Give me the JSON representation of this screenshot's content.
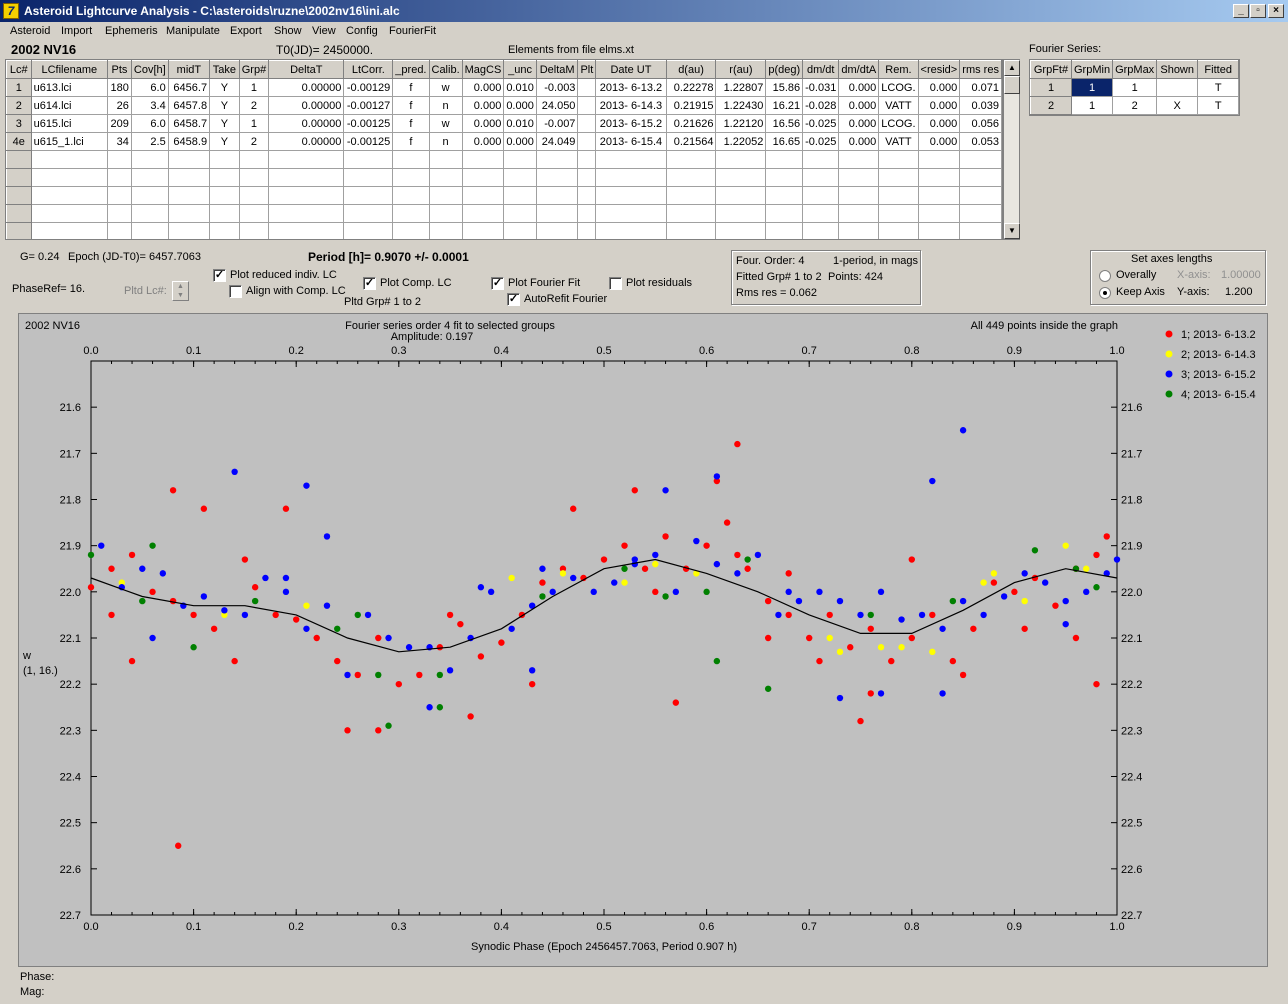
{
  "window": {
    "title": "Asteroid Lightcurve Analysis - C:\\asteroids\\ruzne\\2002nv16\\ini.alc",
    "icon_glyph": "7",
    "controls": [
      "_",
      "▫",
      "×"
    ]
  },
  "menu": [
    "Asteroid",
    "Import",
    "Ephemeris",
    "Manipulate",
    "Export",
    "Show",
    "View",
    "Config",
    "FourierFit"
  ],
  "header": {
    "asteroid": "2002 NV16",
    "t0": "T0(JD)= 2450000.",
    "elements": "Elements from file elms.xt"
  },
  "lc_table": {
    "columns": [
      "Lc#",
      "LCfilename",
      "Pts",
      "Cov[h]",
      "midT",
      "Take",
      "Grp#",
      "DeltaT",
      "LtCorr.",
      "_pred.",
      "Calib.",
      "MagCS",
      "_unc",
      "DeltaM",
      "Plt",
      "Date UT",
      "d(au)",
      "r(au)",
      "p(deg)",
      "dm/dt",
      "dm/dtA",
      "Rem.",
      "<resid>",
      "rms res"
    ],
    "rows": [
      [
        "1",
        "u613.lci",
        "180",
        "6.0",
        "6456.7",
        "Y",
        "1",
        "0.00000",
        "-0.00129",
        "f",
        "w",
        "0.000",
        "0.010",
        "-0.003",
        "",
        "2013- 6-13.2",
        "0.22278",
        "1.22807",
        "15.86",
        "-0.031",
        "0.000",
        "LCOG.",
        "0.000",
        "0.071"
      ],
      [
        "2",
        "u614.lci",
        "26",
        "3.4",
        "6457.8",
        "Y",
        "2",
        "0.00000",
        "-0.00127",
        "f",
        "n",
        "0.000",
        "0.000",
        "24.050",
        "",
        "2013- 6-14.3",
        "0.21915",
        "1.22430",
        "16.21",
        "-0.028",
        "0.000",
        "VATT",
        "0.000",
        "0.039"
      ],
      [
        "3",
        "u615.lci",
        "209",
        "6.0",
        "6458.7",
        "Y",
        "1",
        "0.00000",
        "-0.00125",
        "f",
        "w",
        "0.000",
        "0.010",
        "-0.007",
        "",
        "2013- 6-15.2",
        "0.21626",
        "1.22120",
        "16.56",
        "-0.025",
        "0.000",
        "LCOG.",
        "0.000",
        "0.056"
      ],
      [
        "4e",
        "u615_1.lci",
        "34",
        "2.5",
        "6458.9",
        "Y",
        "2",
        "0.00000",
        "-0.00125",
        "f",
        "n",
        "0.000",
        "0.000",
        "24.049",
        "",
        "2013- 6-15.4",
        "0.21564",
        "1.22052",
        "16.65",
        "-0.025",
        "0.000",
        "VATT",
        "0.000",
        "0.053"
      ]
    ],
    "empty_rows": 6
  },
  "fourier_series": {
    "title": "Fourier Series:",
    "columns": [
      "GrpFt#",
      "GrpMin",
      "GrpMax",
      "Shown",
      "Fitted"
    ],
    "rows": [
      [
        "1",
        "1",
        "1",
        "",
        "T"
      ],
      [
        "2",
        "1",
        "2",
        "X",
        "T"
      ]
    ]
  },
  "params": {
    "g": "G= 0.24",
    "epoch": "Epoch (JD-T0)= 6457.7063",
    "period": "Period [h]= 0.9070 +/- 0.0001",
    "phaseref": "PhaseRef= 16.",
    "pltd_lc": "Pltd Lc#:",
    "pltd_grp": "Pltd Grp#  1  to   2"
  },
  "checkboxes": {
    "plot_reduced": {
      "label": "Plot reduced indiv. LC",
      "checked": true
    },
    "align": {
      "label": "Align with Comp. LC",
      "checked": false
    },
    "plot_comp": {
      "label": "Plot Comp. LC",
      "checked": true
    },
    "plot_fourier": {
      "label": "Plot Fourier Fit",
      "checked": true
    },
    "autorefit": {
      "label": "AutoRefit Fourier",
      "checked": true
    },
    "plot_residuals": {
      "label": "Plot residuals",
      "checked": false
    }
  },
  "fit_info": {
    "order": "Four. Order:  4",
    "mode": "1-period, in mags",
    "fitted": "Fitted Grp# 1 to 2",
    "points": "Points: 424",
    "rms": "Rms res     = 0.062"
  },
  "axes_box": {
    "title": "Set axes lengths",
    "overall": "Overally",
    "keep": "Keep Axis",
    "xaxis_label": "X-axis:",
    "xaxis_val": "1.00000",
    "yaxis_label": "Y-axis:",
    "yaxis_val": "1.200"
  },
  "plot": {
    "name": "2002 NV16",
    "subtitle": "Fourier series order 4 fit to selected groups",
    "amplitude": "Amplitude: 0.197",
    "points_note": "All 449 points inside the graph",
    "ylabel": "w",
    "ylabel2": "(1, 16.)",
    "xlabel": "Synodic Phase (Epoch 2456457.7063, Period 0.907 h)",
    "legend": [
      {
        "label": "1; 2013- 6-13.2",
        "color": "#ff0000"
      },
      {
        "label": "2; 2013- 6-14.3",
        "color": "#ffff00"
      },
      {
        "label": "3; 2013- 6-15.2",
        "color": "#0000ff"
      },
      {
        "label": "4; 2013- 6-15.4",
        "color": "#008000"
      }
    ]
  },
  "chart_data": {
    "type": "scatter",
    "title": "Fourier series order 4 fit to selected groups",
    "xlabel": "Synodic Phase (Epoch 2456457.7063, Period 0.907 h)",
    "ylabel": "w (1, 16.)",
    "xlim": [
      0.0,
      1.0
    ],
    "ylim": [
      22.7,
      21.5
    ],
    "y_inverted": true,
    "xticks": [
      "0.0",
      "0.1",
      "0.2",
      "0.3",
      "0.4",
      "0.5",
      "0.6",
      "0.7",
      "0.8",
      "0.9",
      "1.0"
    ],
    "yticks": [
      "21.6",
      "21.7",
      "21.8",
      "21.9",
      "22.0",
      "22.1",
      "22.2",
      "22.3",
      "22.4",
      "22.5",
      "22.6",
      "22.7"
    ],
    "fourier_curve": {
      "x": [
        0.0,
        0.05,
        0.1,
        0.15,
        0.2,
        0.25,
        0.3,
        0.35,
        0.4,
        0.45,
        0.5,
        0.55,
        0.6,
        0.65,
        0.7,
        0.75,
        0.8,
        0.85,
        0.9,
        0.95,
        1.0
      ],
      "y": [
        21.97,
        22.01,
        22.03,
        22.03,
        22.05,
        22.1,
        22.13,
        22.12,
        22.08,
        22.01,
        21.95,
        21.93,
        21.96,
        22.0,
        22.05,
        22.09,
        22.09,
        22.04,
        21.98,
        21.95,
        21.97
      ]
    },
    "series": [
      {
        "name": "1; 2013- 6-13.2",
        "color": "#ff0000",
        "points": [
          [
            0.0,
            21.99
          ],
          [
            0.02,
            22.05
          ],
          [
            0.04,
            21.92
          ],
          [
            0.06,
            22.0
          ],
          [
            0.08,
            22.02
          ],
          [
            0.1,
            22.05
          ],
          [
            0.12,
            22.08
          ],
          [
            0.14,
            22.15
          ],
          [
            0.16,
            21.99
          ],
          [
            0.18,
            22.05
          ],
          [
            0.2,
            22.06
          ],
          [
            0.22,
            22.1
          ],
          [
            0.24,
            22.15
          ],
          [
            0.26,
            22.18
          ],
          [
            0.28,
            22.1
          ],
          [
            0.3,
            22.2
          ],
          [
            0.32,
            22.18
          ],
          [
            0.34,
            22.12
          ],
          [
            0.36,
            22.07
          ],
          [
            0.38,
            22.14
          ],
          [
            0.4,
            22.11
          ],
          [
            0.42,
            22.05
          ],
          [
            0.44,
            21.98
          ],
          [
            0.46,
            21.95
          ],
          [
            0.48,
            21.97
          ],
          [
            0.5,
            21.93
          ],
          [
            0.52,
            21.9
          ],
          [
            0.54,
            21.95
          ],
          [
            0.56,
            21.88
          ],
          [
            0.58,
            21.95
          ],
          [
            0.6,
            21.9
          ],
          [
            0.62,
            21.85
          ],
          [
            0.64,
            21.95
          ],
          [
            0.66,
            22.02
          ],
          [
            0.68,
            22.05
          ],
          [
            0.7,
            22.1
          ],
          [
            0.72,
            22.05
          ],
          [
            0.74,
            22.12
          ],
          [
            0.76,
            22.08
          ],
          [
            0.78,
            22.15
          ],
          [
            0.8,
            22.1
          ],
          [
            0.82,
            22.05
          ],
          [
            0.84,
            22.15
          ],
          [
            0.86,
            22.08
          ],
          [
            0.88,
            21.98
          ],
          [
            0.9,
            22.0
          ],
          [
            0.92,
            21.97
          ],
          [
            0.94,
            22.03
          ],
          [
            0.96,
            21.95
          ],
          [
            0.98,
            21.92
          ],
          [
            0.99,
            21.88
          ],
          [
            0.08,
            21.78
          ],
          [
            0.04,
            22.15
          ],
          [
            0.085,
            22.55
          ],
          [
            0.28,
            22.3
          ],
          [
            0.25,
            22.3
          ],
          [
            0.47,
            21.82
          ],
          [
            0.53,
            21.78
          ],
          [
            0.63,
            21.68
          ],
          [
            0.61,
            21.76
          ],
          [
            0.75,
            22.28
          ],
          [
            0.76,
            22.22
          ],
          [
            0.98,
            22.2
          ],
          [
            0.8,
            21.93
          ],
          [
            0.96,
            22.1
          ],
          [
            0.02,
            21.95
          ],
          [
            0.15,
            21.93
          ],
          [
            0.35,
            22.05
          ],
          [
            0.43,
            22.2
          ],
          [
            0.55,
            22.0
          ],
          [
            0.68,
            21.96
          ],
          [
            0.71,
            22.15
          ],
          [
            0.85,
            22.18
          ],
          [
            0.91,
            22.08
          ],
          [
            0.19,
            21.82
          ],
          [
            0.11,
            21.82
          ],
          [
            0.37,
            22.27
          ],
          [
            0.57,
            22.24
          ],
          [
            0.63,
            21.92
          ],
          [
            0.66,
            22.1
          ]
        ]
      },
      {
        "name": "2; 2013- 6-14.3",
        "color": "#ffff00",
        "points": [
          [
            0.03,
            21.98
          ],
          [
            0.13,
            22.05
          ],
          [
            0.21,
            22.03
          ],
          [
            0.41,
            21.97
          ],
          [
            0.46,
            21.96
          ],
          [
            0.52,
            21.98
          ],
          [
            0.55,
            21.94
          ],
          [
            0.59,
            21.96
          ],
          [
            0.72,
            22.1
          ],
          [
            0.73,
            22.13
          ],
          [
            0.77,
            22.12
          ],
          [
            0.79,
            22.12
          ],
          [
            0.82,
            22.13
          ],
          [
            0.87,
            21.98
          ],
          [
            0.88,
            21.96
          ],
          [
            0.91,
            22.02
          ],
          [
            0.95,
            21.9
          ],
          [
            0.97,
            21.95
          ]
        ]
      },
      {
        "name": "3; 2013- 6-15.2",
        "color": "#0000ff",
        "points": [
          [
            0.01,
            21.9
          ],
          [
            0.03,
            21.99
          ],
          [
            0.05,
            21.95
          ],
          [
            0.07,
            21.96
          ],
          [
            0.09,
            22.03
          ],
          [
            0.11,
            22.01
          ],
          [
            0.13,
            22.04
          ],
          [
            0.15,
            22.05
          ],
          [
            0.17,
            21.97
          ],
          [
            0.19,
            22.0
          ],
          [
            0.21,
            22.08
          ],
          [
            0.23,
            22.03
          ],
          [
            0.25,
            22.18
          ],
          [
            0.27,
            22.05
          ],
          [
            0.29,
            22.1
          ],
          [
            0.31,
            22.12
          ],
          [
            0.33,
            22.12
          ],
          [
            0.35,
            22.17
          ],
          [
            0.37,
            22.1
          ],
          [
            0.39,
            22.0
          ],
          [
            0.41,
            22.08
          ],
          [
            0.43,
            22.03
          ],
          [
            0.45,
            22.0
          ],
          [
            0.47,
            21.97
          ],
          [
            0.49,
            22.0
          ],
          [
            0.51,
            21.98
          ],
          [
            0.53,
            21.94
          ],
          [
            0.55,
            21.92
          ],
          [
            0.57,
            22.0
          ],
          [
            0.59,
            21.89
          ],
          [
            0.61,
            21.94
          ],
          [
            0.63,
            21.96
          ],
          [
            0.65,
            21.92
          ],
          [
            0.67,
            22.05
          ],
          [
            0.69,
            22.02
          ],
          [
            0.71,
            22.0
          ],
          [
            0.73,
            22.02
          ],
          [
            0.75,
            22.05
          ],
          [
            0.77,
            22.0
          ],
          [
            0.79,
            22.06
          ],
          [
            0.81,
            22.05
          ],
          [
            0.83,
            22.08
          ],
          [
            0.85,
            22.02
          ],
          [
            0.87,
            22.05
          ],
          [
            0.89,
            22.01
          ],
          [
            0.91,
            21.96
          ],
          [
            0.93,
            21.98
          ],
          [
            0.95,
            22.02
          ],
          [
            0.97,
            22.0
          ],
          [
            0.99,
            21.96
          ],
          [
            1.0,
            21.93
          ],
          [
            0.14,
            21.74
          ],
          [
            0.21,
            21.77
          ],
          [
            0.23,
            21.88
          ],
          [
            0.56,
            21.78
          ],
          [
            0.61,
            21.75
          ],
          [
            0.82,
            21.76
          ],
          [
            0.85,
            21.65
          ],
          [
            0.73,
            22.23
          ],
          [
            0.77,
            22.22
          ],
          [
            0.83,
            22.22
          ],
          [
            0.43,
            22.17
          ],
          [
            0.19,
            21.97
          ],
          [
            0.38,
            21.99
          ],
          [
            0.44,
            21.95
          ],
          [
            0.68,
            22.0
          ],
          [
            0.53,
            21.93
          ],
          [
            0.95,
            22.07
          ],
          [
            0.06,
            22.1
          ],
          [
            0.33,
            22.25
          ]
        ]
      },
      {
        "name": "4; 2013- 6-15.4",
        "color": "#008000",
        "points": [
          [
            0.0,
            21.92
          ],
          [
            0.05,
            22.02
          ],
          [
            0.06,
            21.9
          ],
          [
            0.1,
            22.12
          ],
          [
            0.16,
            22.02
          ],
          [
            0.24,
            22.08
          ],
          [
            0.26,
            22.05
          ],
          [
            0.28,
            22.18
          ],
          [
            0.29,
            22.29
          ],
          [
            0.34,
            22.18
          ],
          [
            0.34,
            22.25
          ],
          [
            0.44,
            22.01
          ],
          [
            0.52,
            21.95
          ],
          [
            0.56,
            22.01
          ],
          [
            0.6,
            22.0
          ],
          [
            0.61,
            22.15
          ],
          [
            0.64,
            21.93
          ],
          [
            0.66,
            22.21
          ],
          [
            0.76,
            22.05
          ],
          [
            0.84,
            22.02
          ],
          [
            0.92,
            21.91
          ],
          [
            0.96,
            21.95
          ],
          [
            0.98,
            21.99
          ]
        ]
      }
    ]
  },
  "status": {
    "phase": "Phase:",
    "mag": "Mag:"
  }
}
